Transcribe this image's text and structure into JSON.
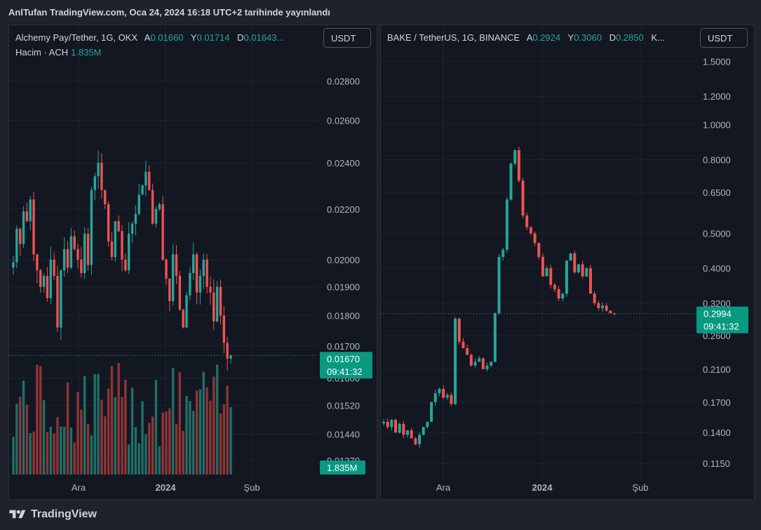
{
  "header": {
    "text": "AnlTufan TradingView.com, Oca 24, 2024 16:18 UTC+2 tarihinde yayınlandı"
  },
  "footer": {
    "brand": "TradingView"
  },
  "colors": {
    "up": "#26a69a",
    "down": "#ef5350",
    "vol_up": "#1f6f67",
    "vol_down": "#8f3436",
    "bg": "#131722",
    "text": "#d1d4dc"
  },
  "left": {
    "symbol": "Alchemy Pay/Tether, 1G, OKX",
    "ohlc": [
      {
        "k": "A",
        "v": "0.01660"
      },
      {
        "k": "Y",
        "v": "0.01714"
      },
      {
        "k": "D",
        "v": "0.01643..."
      }
    ],
    "volume_label": "Hacim · ACH",
    "volume_value": "1.835M",
    "currency": "USDT",
    "price_badge": {
      "price": "0.01670",
      "time": "09:41:32"
    },
    "volume_badge": "1.835M"
  },
  "right": {
    "symbol": "BAKE / TetherUS, 1G, BINANCE",
    "ohlc": [
      {
        "k": "A",
        "v": "0.2924"
      },
      {
        "k": "Y",
        "v": "0.3060"
      },
      {
        "k": "D",
        "v": "0.2850"
      },
      {
        "k": "K...",
        "v": ""
      }
    ],
    "currency": "USDT",
    "price_badge": {
      "price": "0.2994",
      "time": "09:41:32"
    }
  },
  "chart_data": [
    {
      "type": "candlestick",
      "symbol": "Alchemy Pay/Tether, 1G, OKX",
      "x_tick_labels": [
        "Ara",
        "2024",
        "Şub"
      ],
      "y_tick_labels": [
        "0.02800",
        "0.02600",
        "0.02400",
        "0.02200",
        "0.02000",
        "0.01900",
        "0.01800",
        "0.01700",
        "0.01600",
        "0.01520",
        "0.01440",
        "0.01370"
      ],
      "y_ticks": [
        0.028,
        0.026,
        0.024,
        0.022,
        0.02,
        0.019,
        0.018,
        0.017,
        0.016,
        0.0152,
        0.0144,
        0.0137
      ],
      "ylim": [
        0.0137,
        0.0285
      ],
      "log_scale": true,
      "last_price": 0.0167,
      "close_path": [
        0.0199,
        0.0212,
        0.0206,
        0.0219,
        0.0215,
        0.0224,
        0.0202,
        0.0196,
        0.019,
        0.0194,
        0.0186,
        0.02,
        0.0194,
        0.0176,
        0.0196,
        0.0204,
        0.0197,
        0.0209,
        0.0204,
        0.02,
        0.0195,
        0.021,
        0.0198,
        0.0228,
        0.0234,
        0.024,
        0.0228,
        0.0222,
        0.0207,
        0.0201,
        0.0215,
        0.0211,
        0.02,
        0.0196,
        0.021,
        0.0214,
        0.0218,
        0.0226,
        0.023,
        0.0236,
        0.0228,
        0.0214,
        0.022,
        0.0222,
        0.02,
        0.0193,
        0.0185,
        0.0202,
        0.0194,
        0.0182,
        0.0176,
        0.0187,
        0.0195,
        0.0202,
        0.0188,
        0.0194,
        0.02,
        0.019,
        0.0188,
        0.0178,
        0.019,
        0.018,
        0.0171,
        0.0166,
        0.0167
      ],
      "volume_max": 120
    },
    {
      "type": "candlestick",
      "symbol": "BAKE / TetherUS, 1G, BINANCE",
      "x_tick_labels": [
        "Ara",
        "2024",
        "Şub"
      ],
      "y_tick_labels": [
        "1.5000",
        "1.2000",
        "1.0000",
        "0.8000",
        "0.6500",
        "0.5000",
        "0.4000",
        "0.3200",
        "0.2600",
        "0.2100",
        "0.1700",
        "0.1400",
        "0.1150"
      ],
      "y_ticks": [
        1.5,
        1.2,
        1.0,
        0.8,
        0.65,
        0.5,
        0.4,
        0.32,
        0.26,
        0.21,
        0.17,
        0.14,
        0.115
      ],
      "ylim": [
        0.112,
        1.55
      ],
      "log_scale": true,
      "last_price": 0.2994,
      "close_path": [
        0.15,
        0.145,
        0.152,
        0.14,
        0.148,
        0.138,
        0.142,
        0.135,
        0.13,
        0.138,
        0.145,
        0.15,
        0.17,
        0.18,
        0.185,
        0.175,
        0.178,
        0.168,
        0.29,
        0.25,
        0.24,
        0.23,
        0.215,
        0.22,
        0.225,
        0.21,
        0.215,
        0.22,
        0.3,
        0.43,
        0.45,
        0.62,
        0.78,
        0.85,
        0.7,
        0.56,
        0.52,
        0.5,
        0.47,
        0.43,
        0.38,
        0.4,
        0.36,
        0.35,
        0.33,
        0.34,
        0.42,
        0.44,
        0.39,
        0.41,
        0.38,
        0.4,
        0.34,
        0.32,
        0.31,
        0.315,
        0.305,
        0.3,
        0.2994
      ]
    }
  ]
}
